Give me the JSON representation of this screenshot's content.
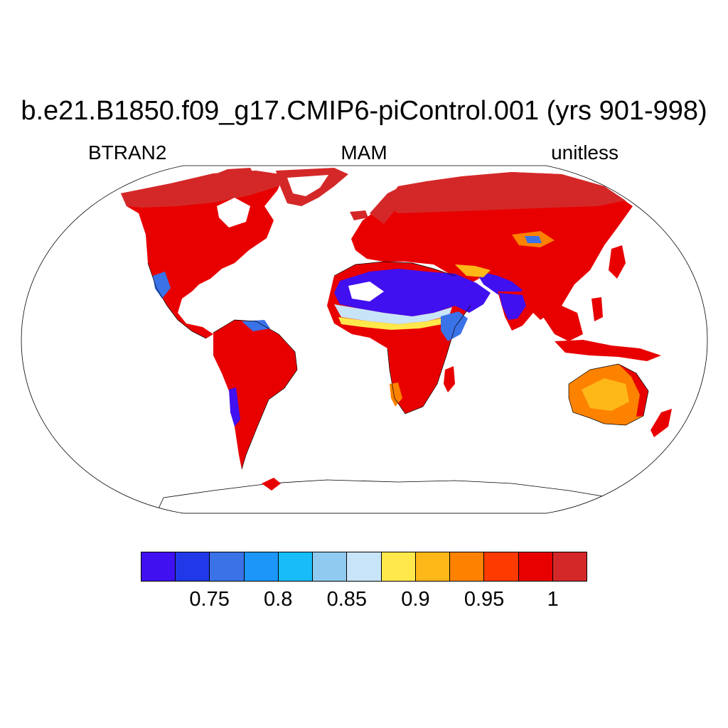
{
  "title": "b.e21.B1850.f09_g17.CMIP6-piControl.001 (yrs 901-998)",
  "subtitle_left": "BTRAN2",
  "subtitle_center": "MAM",
  "subtitle_right": "unitless",
  "colorbar": {
    "colors": [
      "#4010f0",
      "#2038e8",
      "#3a72e8",
      "#1c96f8",
      "#18bcf8",
      "#90caf0",
      "#c8e4f8",
      "#ffe84c",
      "#fdb818",
      "#fd8200",
      "#fd3a00",
      "#e80000",
      "#d42828"
    ],
    "labels": [
      "0.75",
      "0.8",
      "0.85",
      "0.9",
      "0.95",
      "1"
    ]
  },
  "map": {
    "projection": "robinson",
    "ocean_color": "#ffffff",
    "land_base_color": "#e80000",
    "high_latitude_color": "#d42828",
    "coastline_color": "#000000"
  }
}
